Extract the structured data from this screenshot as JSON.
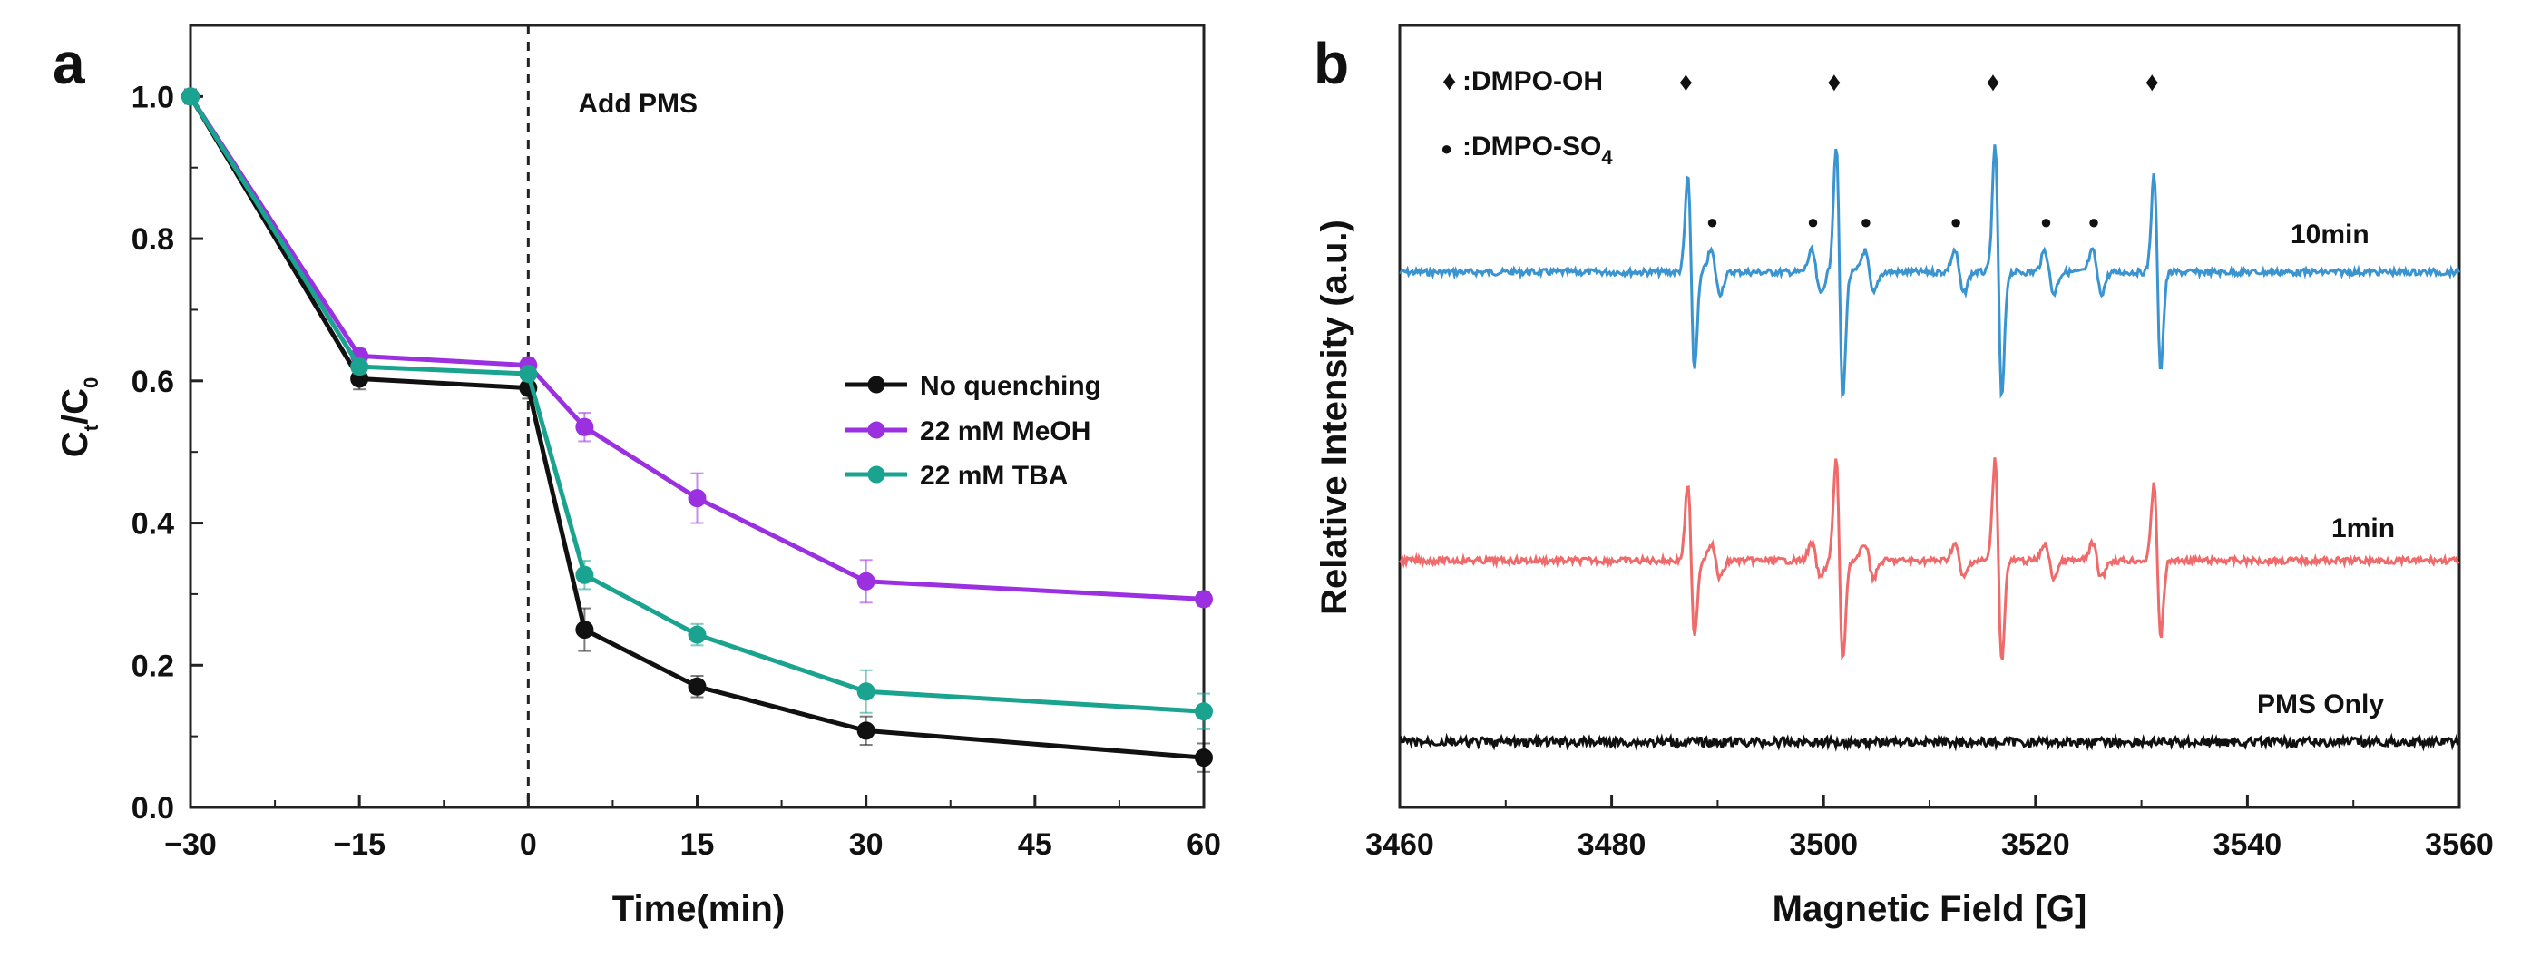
{
  "panels": [
    {
      "letter": "a"
    },
    {
      "letter": "b"
    }
  ],
  "chart_data": [
    {
      "panel": "a",
      "type": "line",
      "title": "",
      "xlabel": "Time(min)",
      "ylabel": "Ct/C0",
      "ylabel_parts": {
        "main_1": "C",
        "sub_1": "t",
        "slash": "/",
        "main_2": "C",
        "sub_2": "0"
      },
      "xlim": [
        -30,
        60
      ],
      "ylim": [
        0.0,
        1.1
      ],
      "x_ticks": [
        -30,
        -15,
        0,
        15,
        30,
        45,
        60
      ],
      "x_tick_labels": [
        "−30",
        "−15",
        "0",
        "15",
        "30",
        "45",
        "60"
      ],
      "y_ticks": [
        0.0,
        0.2,
        0.4,
        0.6,
        0.8,
        1.0
      ],
      "y_tick_labels": [
        "0.0",
        "0.2",
        "0.4",
        "0.6",
        "0.8",
        "1.0"
      ],
      "x": [
        -30,
        -15,
        0,
        5,
        15,
        30,
        60
      ],
      "series": [
        {
          "name": "No quenching",
          "color": "#111111",
          "values": [
            1.0,
            0.603,
            0.59,
            0.25,
            0.17,
            0.108,
            0.07
          ],
          "errors": [
            0.01,
            0.015,
            0.015,
            0.03,
            0.015,
            0.02,
            0.02
          ]
        },
        {
          "name": "22 mM MeOH",
          "color": "#9b30e0",
          "values": [
            1.0,
            0.635,
            0.622,
            0.535,
            0.435,
            0.318,
            0.293
          ],
          "errors": [
            0.01,
            0.01,
            0.01,
            0.02,
            0.035,
            0.03,
            0.01
          ]
        },
        {
          "name": "22 mM TBA",
          "color": "#1aa38f",
          "values": [
            1.0,
            0.62,
            0.61,
            0.327,
            0.243,
            0.163,
            0.135
          ],
          "errors": [
            0.01,
            0.01,
            0.01,
            0.02,
            0.015,
            0.03,
            0.025
          ]
        }
      ],
      "annotations": [
        {
          "text": "Add PMS",
          "x": 0
        }
      ],
      "vline": {
        "x": 0,
        "style": "dashed"
      },
      "legend": {
        "position": "center-right"
      }
    },
    {
      "panel": "b",
      "type": "line",
      "title": "",
      "xlabel": "Magnetic Field [G]",
      "ylabel": "Relative Intensity (a.u.)",
      "xlim": [
        3460,
        3560
      ],
      "x_ticks": [
        3460,
        3480,
        3500,
        3520,
        3540,
        3560
      ],
      "x_tick_labels": [
        "3460",
        "3480",
        "3500",
        "3520",
        "3540",
        "3560"
      ],
      "y_ticks": [],
      "series": [
        {
          "name": "10min",
          "color": "#3a94d0",
          "noise_level": 1.0,
          "scale": 1.0
        },
        {
          "name": "1min",
          "color": "#ef6a6a",
          "noise_level": 1.0,
          "scale": 0.8
        },
        {
          "name": "PMS Only",
          "color": "#111111",
          "noise_level": 1.4,
          "scale": 0.0
        }
      ],
      "peak_markers": {
        "dmpo_oh": {
          "symbol": "♦",
          "x": [
            3487,
            3501,
            3516,
            3531
          ]
        },
        "dmpo_so4": {
          "symbol": "●",
          "x": [
            3489.5,
            3499,
            3504,
            3512.5,
            3521,
            3525.5
          ]
        }
      },
      "legend": {
        "position": "top-left",
        "entries": [
          {
            "symbol": "♦",
            "label": ":DMPO-OH"
          },
          {
            "symbol": "●",
            "label": ":DMPO-SO",
            "subscript": "4"
          }
        ]
      }
    }
  ]
}
